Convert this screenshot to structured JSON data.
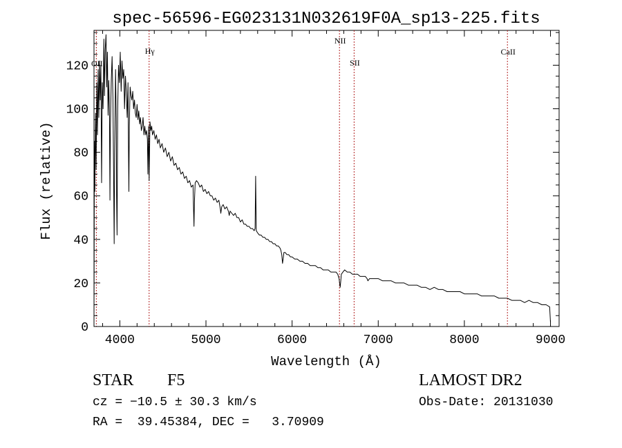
{
  "chart_data": {
    "type": "line",
    "title": "spec-56596-EG023131N032619F0A_sp13-225.fits",
    "xlabel": "Wavelength (Å)",
    "ylabel": "Flux (relative)",
    "xlim": [
      3700,
      9100
    ],
    "ylim": [
      0,
      136
    ],
    "x_ticks": [
      4000,
      5000,
      6000,
      7000,
      8000,
      9000
    ],
    "y_ticks": [
      0,
      20,
      40,
      60,
      80,
      100,
      120
    ],
    "grid": false,
    "series": [
      {
        "color": "#000000",
        "points": [
          [
            3700,
            2
          ],
          [
            3705,
            85
          ],
          [
            3710,
            62
          ],
          [
            3718,
            98
          ],
          [
            3725,
            72
          ],
          [
            3732,
            112
          ],
          [
            3740,
            88
          ],
          [
            3748,
            118
          ],
          [
            3756,
            96
          ],
          [
            3764,
            122
          ],
          [
            3772,
            104
          ],
          [
            3780,
            120
          ],
          [
            3788,
            66
          ],
          [
            3796,
            112
          ],
          [
            3805,
            100
          ],
          [
            3815,
            132
          ],
          [
            3822,
            106
          ],
          [
            3830,
            127
          ],
          [
            3840,
            134
          ],
          [
            3848,
            110
          ],
          [
            3856,
            126
          ],
          [
            3864,
            97
          ],
          [
            3872,
            113
          ],
          [
            3880,
            98
          ],
          [
            3885,
            58
          ],
          [
            3890,
            90
          ],
          [
            3900,
            112
          ],
          [
            3910,
            124
          ],
          [
            3920,
            105
          ],
          [
            3928,
            70
          ],
          [
            3934,
            38
          ],
          [
            3940,
            80
          ],
          [
            3950,
            118
          ],
          [
            3958,
            96
          ],
          [
            3962,
            60
          ],
          [
            3968,
            42
          ],
          [
            3975,
            100
          ],
          [
            3985,
            120
          ],
          [
            3995,
            112
          ],
          [
            4005,
            126
          ],
          [
            4015,
            108
          ],
          [
            4025,
            122
          ],
          [
            4035,
            114
          ],
          [
            4045,
            118
          ],
          [
            4055,
            100
          ],
          [
            4065,
            115
          ],
          [
            4075,
            108
          ],
          [
            4085,
            96
          ],
          [
            4095,
            112
          ],
          [
            4101,
            78
          ],
          [
            4105,
            62
          ],
          [
            4110,
            92
          ],
          [
            4120,
            110
          ],
          [
            4130,
            106
          ],
          [
            4140,
            104
          ],
          [
            4150,
            108
          ],
          [
            4160,
            100
          ],
          [
            4170,
            104
          ],
          [
            4180,
            98
          ],
          [
            4190,
            96
          ],
          [
            4200,
            102
          ],
          [
            4210,
            95
          ],
          [
            4220,
            99
          ],
          [
            4230,
            93
          ],
          [
            4240,
            96
          ],
          [
            4250,
            90
          ],
          [
            4260,
            92
          ],
          [
            4270,
            96
          ],
          [
            4280,
            88
          ],
          [
            4290,
            92
          ],
          [
            4300,
            88
          ],
          [
            4310,
            90
          ],
          [
            4320,
            86
          ],
          [
            4326,
            70
          ],
          [
            4330,
            82
          ],
          [
            4335,
            92
          ],
          [
            4340,
            67
          ],
          [
            4345,
            80
          ],
          [
            4350,
            94
          ],
          [
            4360,
            90
          ],
          [
            4370,
            92
          ],
          [
            4380,
            88
          ],
          [
            4395,
            90
          ],
          [
            4410,
            86
          ],
          [
            4425,
            88
          ],
          [
            4440,
            84
          ],
          [
            4455,
            86
          ],
          [
            4470,
            82
          ],
          [
            4490,
            84
          ],
          [
            4510,
            80
          ],
          [
            4530,
            82
          ],
          [
            4550,
            78
          ],
          [
            4570,
            80
          ],
          [
            4590,
            76
          ],
          [
            4610,
            78
          ],
          [
            4630,
            74
          ],
          [
            4650,
            75
          ],
          [
            4670,
            72
          ],
          [
            4690,
            73
          ],
          [
            4710,
            70
          ],
          [
            4730,
            71
          ],
          [
            4750,
            68
          ],
          [
            4770,
            69
          ],
          [
            4790,
            66
          ],
          [
            4810,
            67
          ],
          [
            4830,
            64
          ],
          [
            4850,
            65
          ],
          [
            4855,
            56
          ],
          [
            4861,
            46
          ],
          [
            4866,
            57
          ],
          [
            4875,
            66
          ],
          [
            4890,
            67
          ],
          [
            4910,
            66
          ],
          [
            4930,
            64
          ],
          [
            4950,
            65
          ],
          [
            4970,
            62
          ],
          [
            4990,
            63
          ],
          [
            5010,
            61
          ],
          [
            5030,
            62
          ],
          [
            5050,
            60
          ],
          [
            5070,
            60
          ],
          [
            5090,
            58
          ],
          [
            5110,
            59
          ],
          [
            5130,
            57
          ],
          [
            5150,
            58
          ],
          [
            5167,
            54
          ],
          [
            5172,
            52
          ],
          [
            5183,
            55
          ],
          [
            5200,
            56
          ],
          [
            5220,
            54
          ],
          [
            5240,
            55
          ],
          [
            5260,
            53
          ],
          [
            5270,
            51
          ],
          [
            5280,
            53
          ],
          [
            5300,
            52
          ],
          [
            5320,
            51
          ],
          [
            5340,
            52
          ],
          [
            5360,
            50
          ],
          [
            5380,
            50
          ],
          [
            5400,
            48
          ],
          [
            5420,
            49
          ],
          [
            5440,
            47
          ],
          [
            5460,
            47
          ],
          [
            5480,
            46
          ],
          [
            5500,
            46
          ],
          [
            5520,
            45
          ],
          [
            5540,
            45
          ],
          [
            5560,
            44
          ],
          [
            5570,
            45
          ],
          [
            5577,
            69
          ],
          [
            5584,
            44
          ],
          [
            5600,
            43
          ],
          [
            5620,
            42
          ],
          [
            5640,
            42
          ],
          [
            5660,
            41
          ],
          [
            5680,
            41
          ],
          [
            5700,
            40
          ],
          [
            5720,
            40
          ],
          [
            5740,
            39
          ],
          [
            5760,
            39
          ],
          [
            5780,
            38
          ],
          [
            5800,
            38
          ],
          [
            5820,
            37
          ],
          [
            5840,
            37
          ],
          [
            5860,
            36
          ],
          [
            5870,
            35
          ],
          [
            5880,
            33
          ],
          [
            5889,
            29
          ],
          [
            5896,
            31
          ],
          [
            5905,
            34
          ],
          [
            5920,
            34
          ],
          [
            5940,
            33
          ],
          [
            5960,
            33
          ],
          [
            5980,
            32
          ],
          [
            6000,
            32
          ],
          [
            6030,
            31
          ],
          [
            6060,
            31
          ],
          [
            6090,
            30
          ],
          [
            6120,
            30
          ],
          [
            6150,
            29
          ],
          [
            6180,
            29
          ],
          [
            6210,
            28
          ],
          [
            6240,
            28
          ],
          [
            6270,
            28
          ],
          [
            6300,
            27
          ],
          [
            6330,
            27
          ],
          [
            6360,
            26
          ],
          [
            6390,
            26
          ],
          [
            6420,
            26
          ],
          [
            6450,
            25
          ],
          [
            6480,
            25
          ],
          [
            6510,
            25
          ],
          [
            6530,
            24
          ],
          [
            6545,
            22
          ],
          [
            6552,
            20
          ],
          [
            6558,
            18
          ],
          [
            6565,
            21
          ],
          [
            6572,
            24
          ],
          [
            6590,
            25
          ],
          [
            6610,
            26
          ],
          [
            6640,
            25
          ],
          [
            6670,
            25
          ],
          [
            6700,
            24
          ],
          [
            6730,
            24
          ],
          [
            6760,
            24
          ],
          [
            6790,
            23
          ],
          [
            6820,
            23
          ],
          [
            6850,
            23
          ],
          [
            6870,
            22
          ],
          [
            6880,
            21
          ],
          [
            6900,
            22
          ],
          [
            6950,
            22
          ],
          [
            7000,
            22
          ],
          [
            7050,
            21
          ],
          [
            7100,
            21
          ],
          [
            7150,
            21
          ],
          [
            7200,
            20
          ],
          [
            7250,
            20
          ],
          [
            7300,
            20
          ],
          [
            7350,
            19
          ],
          [
            7400,
            19
          ],
          [
            7450,
            19
          ],
          [
            7500,
            18
          ],
          [
            7550,
            18
          ],
          [
            7600,
            17
          ],
          [
            7650,
            18
          ],
          [
            7700,
            17
          ],
          [
            7750,
            17
          ],
          [
            7800,
            16
          ],
          [
            7850,
            16
          ],
          [
            7900,
            16
          ],
          [
            7950,
            16
          ],
          [
            8000,
            15
          ],
          [
            8050,
            15
          ],
          [
            8100,
            15
          ],
          [
            8150,
            15
          ],
          [
            8200,
            14
          ],
          [
            8250,
            14
          ],
          [
            8300,
            14
          ],
          [
            8350,
            14
          ],
          [
            8400,
            13
          ],
          [
            8450,
            13
          ],
          [
            8500,
            13
          ],
          [
            8550,
            12
          ],
          [
            8600,
            12
          ],
          [
            8650,
            12
          ],
          [
            8700,
            11
          ],
          [
            8750,
            12
          ],
          [
            8800,
            11
          ],
          [
            8850,
            11
          ],
          [
            8900,
            10
          ],
          [
            8950,
            10
          ],
          [
            8990,
            9
          ],
          [
            9000,
            2
          ]
        ]
      }
    ],
    "lines": [
      {
        "label": "OII",
        "x": 3727
      },
      {
        "label": "Hγ",
        "x": 4340
      },
      {
        "label": "NII",
        "x": 6550
      },
      {
        "label": "SII",
        "x": 6720
      },
      {
        "label": "CaII",
        "x": 8500
      }
    ],
    "line_color": "#b22222"
  },
  "info": {
    "object_class": "STAR",
    "subclass": "F5",
    "redshift": "cz = −10.5 ± 30.3 km/s",
    "coords": "RA =  39.45384, DEC =   3.70909",
    "survey": "LAMOST DR2",
    "obs_date": "Obs-Date: 20131030"
  }
}
